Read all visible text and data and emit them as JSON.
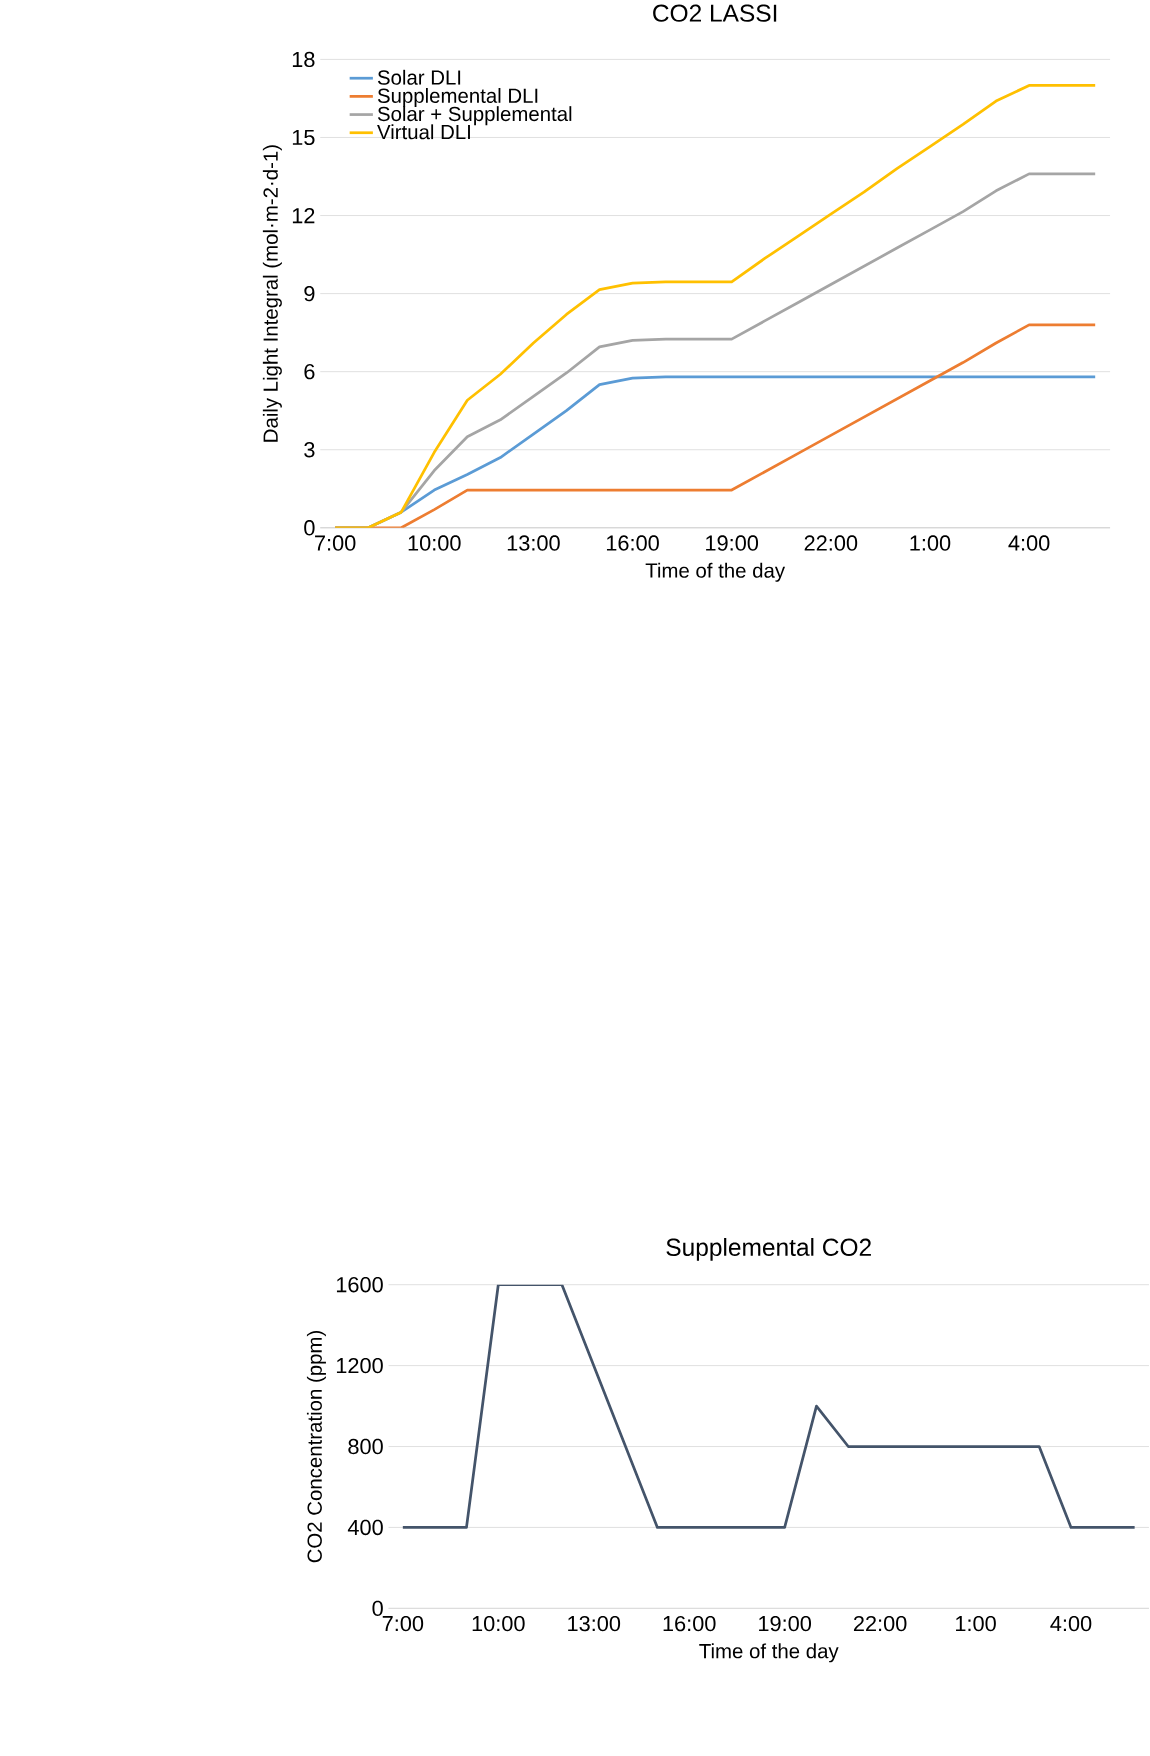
{
  "chart_data": [
    {
      "type": "line",
      "title": "CO2 LASSI",
      "xlabel": "Time of the day",
      "ylabel": "Daily Light Integral (mol·m-2·d-1)",
      "categories": [
        "7:00",
        null,
        null,
        "10:00",
        null,
        null,
        "13:00",
        null,
        null,
        "16:00",
        null,
        null,
        "19:00",
        null,
        null,
        "22:00",
        null,
        null,
        "1:00",
        null,
        null,
        "4:00",
        null,
        null
      ],
      "series": [
        {
          "name": "Solar DLI",
          "color": "#5b9bd5",
          "values": [
            0,
            0,
            0.6,
            1.45,
            2.05,
            2.7,
            3.6,
            4.5,
            5.5,
            5.75,
            5.8,
            5.8,
            5.8,
            5.8,
            5.8,
            5.8,
            5.8,
            5.8,
            5.8,
            5.8,
            5.8,
            5.8,
            5.8,
            5.8
          ]
        },
        {
          "name": "Supplemental DLI",
          "color": "#ed7d31",
          "values": [
            0,
            0,
            0,
            0.7,
            1.45,
            1.45,
            1.45,
            1.45,
            1.45,
            1.45,
            1.45,
            1.45,
            1.45,
            2.15,
            2.85,
            3.55,
            4.25,
            4.95,
            5.65,
            6.35,
            7.1,
            7.8,
            7.8,
            7.8
          ]
        },
        {
          "name": "Solar + Supplemental",
          "color": "#a5a5a5",
          "values": [
            0,
            0,
            0.6,
            2.2,
            3.5,
            4.15,
            5.05,
            5.95,
            6.95,
            7.2,
            7.25,
            7.25,
            7.25,
            7.95,
            8.65,
            9.35,
            10.05,
            10.75,
            11.45,
            12.15,
            12.95,
            13.6,
            13.6,
            13.6
          ]
        },
        {
          "name": "Virtual DLI",
          "color": "#ffc000",
          "values": [
            0,
            0,
            0.6,
            2.9,
            4.9,
            5.9,
            7.1,
            8.2,
            9.15,
            9.4,
            9.45,
            9.45,
            9.45,
            10.35,
            11.2,
            12.05,
            12.9,
            13.8,
            14.65,
            15.5,
            16.4,
            17.0,
            17.0,
            17.0
          ]
        }
      ],
      "ylim": [
        0,
        18
      ],
      "yticks": [
        0,
        3,
        6,
        9,
        12,
        15,
        18
      ],
      "grid": "y",
      "legend": "top left"
    },
    {
      "type": "line",
      "title": "Supplemental CO2",
      "xlabel": "Time of the day",
      "ylabel": "CO2 Concentration (ppm)",
      "categories": [
        "7:00",
        null,
        null,
        "10:00",
        null,
        null,
        "13:00",
        null,
        null,
        "16:00",
        null,
        null,
        "19:00",
        null,
        null,
        "22:00",
        null,
        null,
        "1:00",
        null,
        null,
        "4:00",
        null,
        null
      ],
      "series": [
        {
          "color": "#44546a",
          "values": [
            400,
            400,
            400,
            1600,
            1600,
            1600,
            1200,
            800,
            400,
            400,
            400,
            400,
            400,
            1000,
            800,
            800,
            800,
            800,
            800,
            800,
            800,
            400,
            400,
            400
          ]
        }
      ],
      "ylim": [
        0,
        1600
      ],
      "yticks": [
        0,
        400,
        800,
        1200,
        1600
      ],
      "grid": "y"
    }
  ]
}
